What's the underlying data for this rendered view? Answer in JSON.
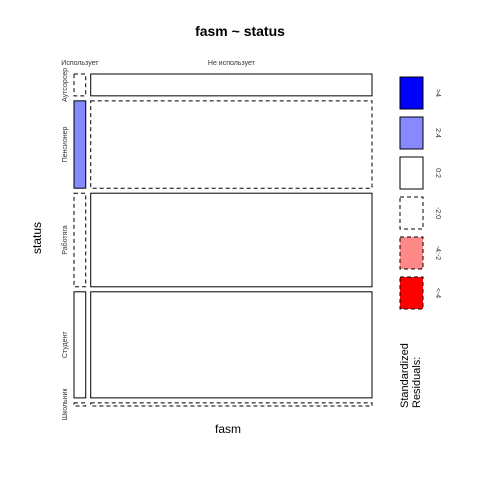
{
  "chart_data": {
    "type": "mosaic",
    "title": "fasm ~ status",
    "xlabel": "fasm",
    "ylabel": "status",
    "fasm_levels": [
      "Использует",
      "Не использует"
    ],
    "status_levels": [
      "Аутсорсер",
      "Пенсионер",
      "Работяга",
      "Студент",
      "Школьник"
    ],
    "status_proportions": [
      0.07,
      0.28,
      0.3,
      0.34,
      0.01
    ],
    "fasm_proportions": [
      0.04,
      0.96
    ],
    "residual_bins": [
      {
        "label": ">4",
        "color": "#0000ff",
        "dashed": false
      },
      {
        "label": "2:4",
        "color": "#8888ff",
        "dashed": false
      },
      {
        "label": "0:2",
        "color": "#ffffff",
        "dashed": false
      },
      {
        "label": "-2:0",
        "color": "#ffffff",
        "dashed": true
      },
      {
        "label": "-4:-2",
        "color": "#ff8888",
        "dashed": true
      },
      {
        "label": "<-4",
        "color": "#ff0000",
        "dashed": true
      }
    ],
    "legend_title": [
      "Standardized",
      "Residuals:"
    ],
    "legend_position": "right"
  }
}
